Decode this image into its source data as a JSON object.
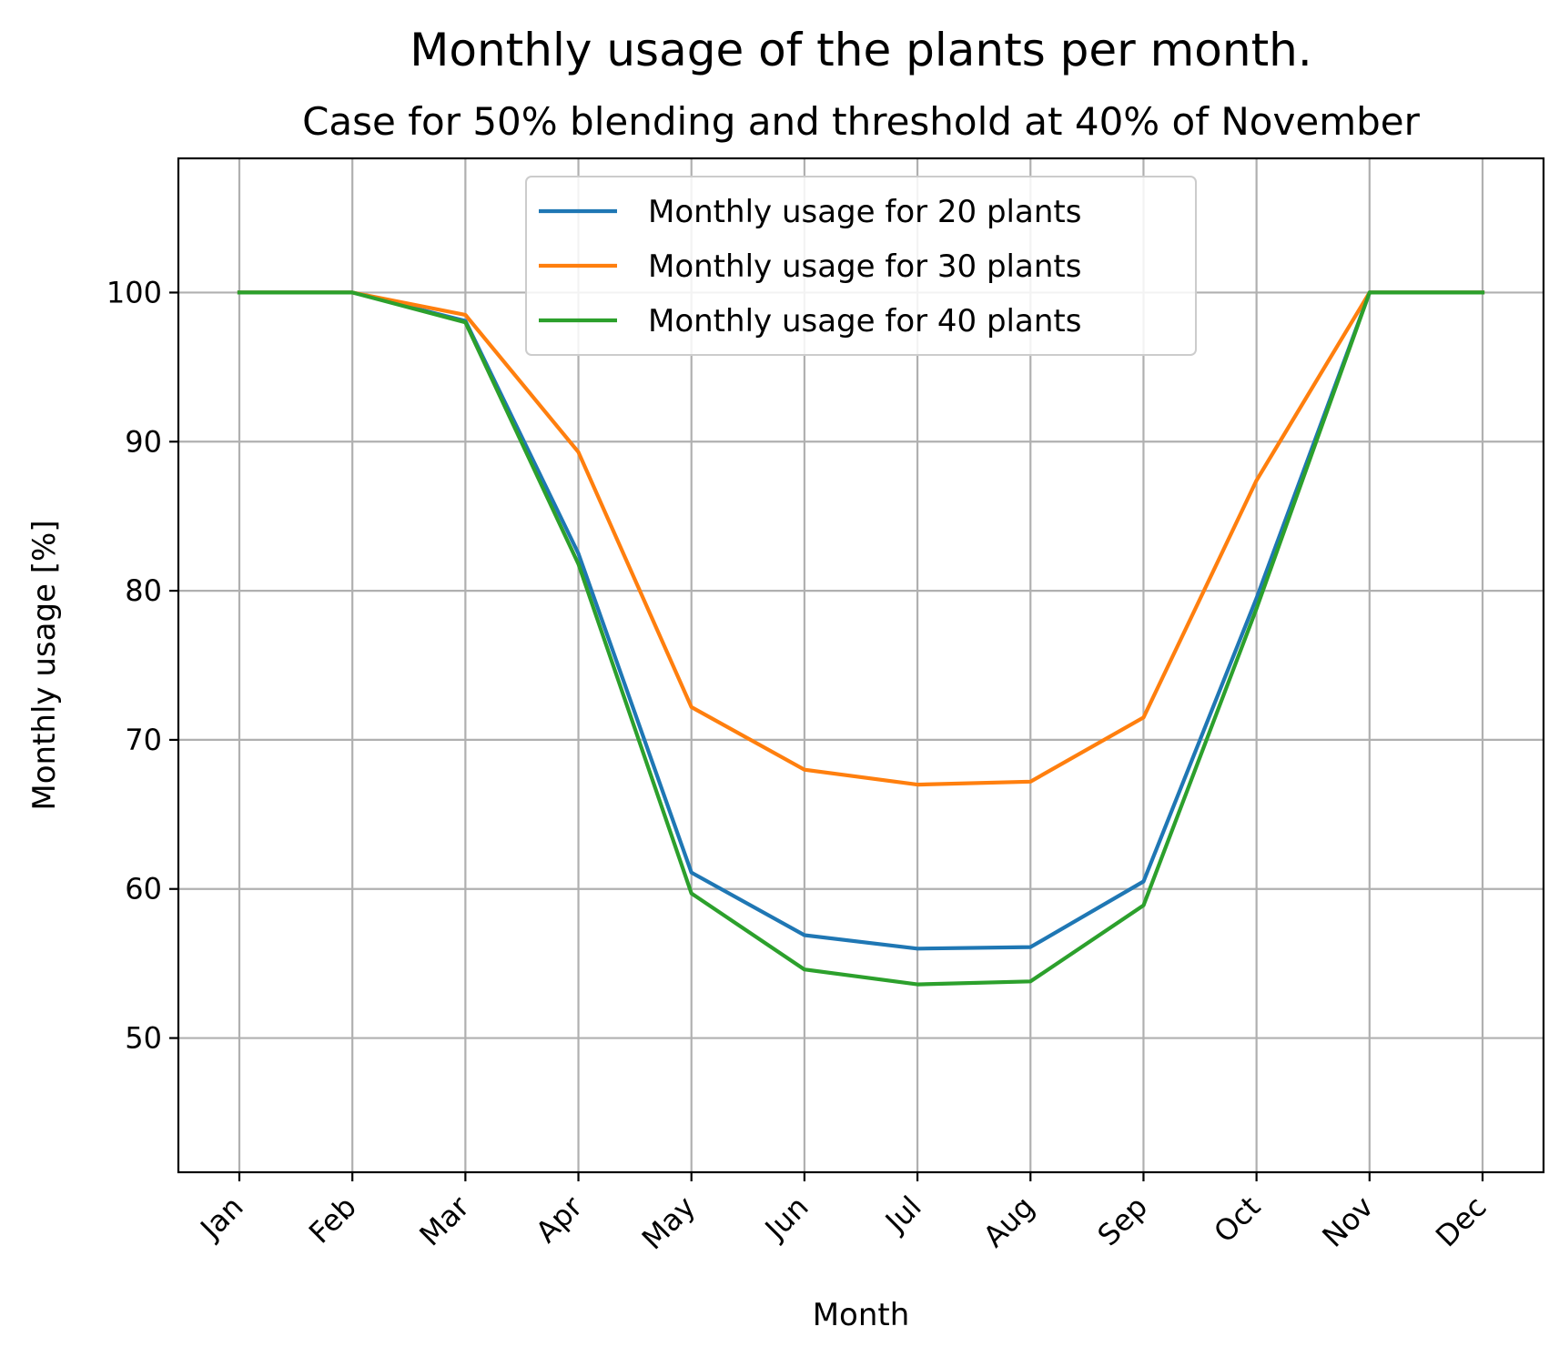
{
  "chart_data": {
    "type": "line",
    "title": "Monthly usage of the plants per month.",
    "subtitle": "Case for 50% blending and threshold at 40% of November",
    "xlabel": "Month",
    "ylabel": "Monthly usage [%]",
    "categories": [
      "Jan",
      "Feb",
      "Mar",
      "Apr",
      "May",
      "Jun",
      "Jul",
      "Aug",
      "Sep",
      "Oct",
      "Nov",
      "Dec"
    ],
    "ylim": [
      41,
      109
    ],
    "yticks": [
      50,
      60,
      70,
      80,
      90,
      100
    ],
    "grid": true,
    "legend_position": "upper center",
    "series": [
      {
        "name": "Monthly usage for 20 plants",
        "color": "#1f77b4",
        "values": [
          100,
          100,
          98.1,
          82.5,
          61.1,
          56.9,
          56.0,
          56.1,
          60.5,
          79.5,
          100,
          100
        ]
      },
      {
        "name": "Monthly usage for 30 plants",
        "color": "#ff7f0e",
        "values": [
          100,
          100,
          98.5,
          89.3,
          72.2,
          68.0,
          67.0,
          67.2,
          71.5,
          87.4,
          100,
          100
        ]
      },
      {
        "name": "Monthly usage for 40 plants",
        "color": "#2ca02c",
        "values": [
          100,
          100,
          98.0,
          81.8,
          59.7,
          54.6,
          53.6,
          53.8,
          58.9,
          78.8,
          100,
          100
        ]
      }
    ]
  }
}
